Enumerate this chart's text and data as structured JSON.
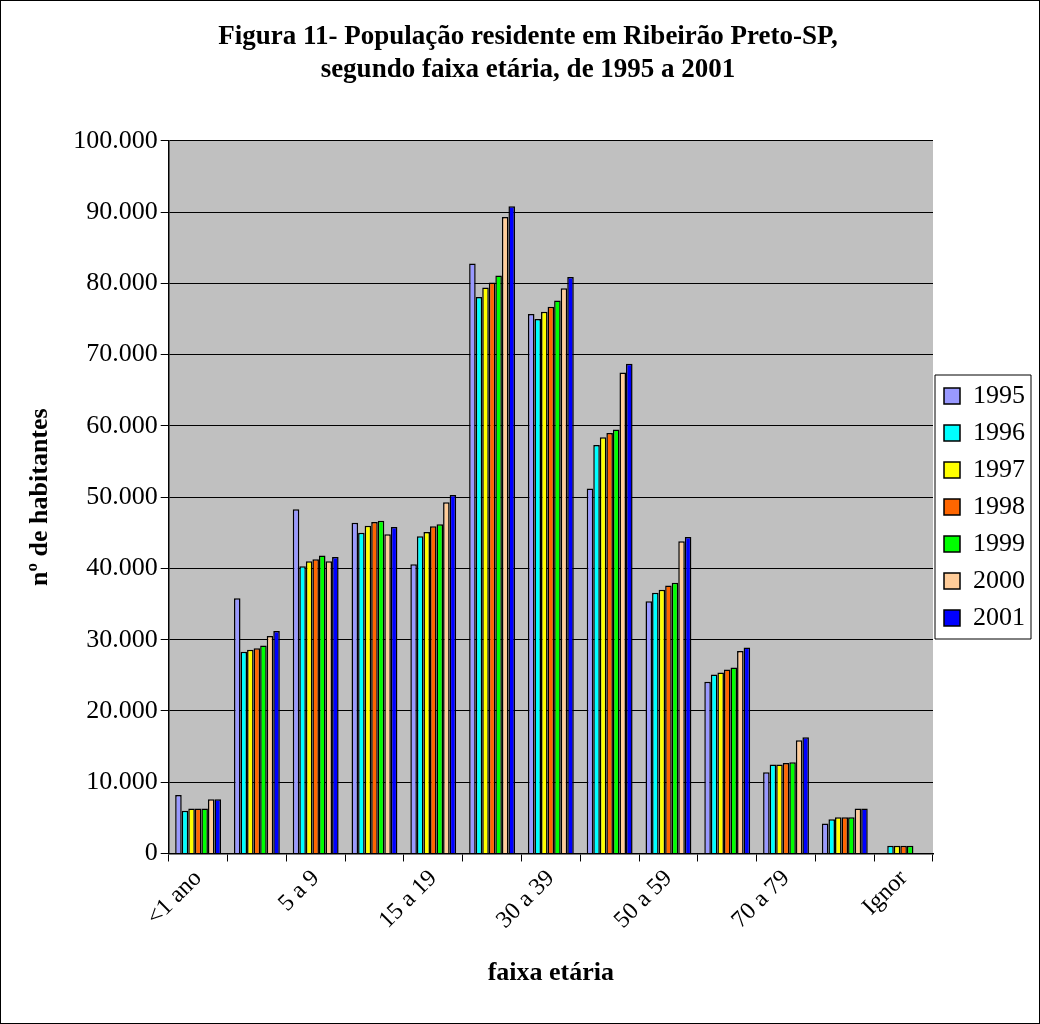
{
  "chart_data": {
    "type": "bar",
    "title": "Figura 11- População residente em Ribeirão Preto-SP, segundo faixa etária, de 1995 a 2001",
    "xlabel": "faixa etária",
    "ylabel": "nº de habitantes",
    "categories": [
      "<1 ano",
      null,
      "5 a 9",
      null,
      "15 a 19",
      null,
      "30 a 39",
      null,
      "50 a 59",
      null,
      "70 a 79",
      null,
      "Ignor"
    ],
    "series": [
      {
        "name": "1995",
        "color": "#9999ff",
        "values": [
          8200,
          35800,
          48300,
          46400,
          40600,
          82800,
          75700,
          51200,
          35400,
          24100,
          11400,
          4200,
          null
        ]
      },
      {
        "name": "1996",
        "color": "#00ffff",
        "values": [
          6000,
          28300,
          40300,
          45000,
          44500,
          78100,
          75000,
          57300,
          36600,
          25100,
          12500,
          4800,
          1100
        ]
      },
      {
        "name": "1997",
        "color": "#ffff00",
        "values": [
          6300,
          28600,
          41000,
          46000,
          45100,
          79400,
          76000,
          58400,
          37000,
          25400,
          12500,
          5100,
          1100
        ]
      },
      {
        "name": "1998",
        "color": "#ff6600",
        "values": [
          6300,
          28800,
          41300,
          46500,
          45900,
          80100,
          76700,
          59000,
          37600,
          25800,
          12700,
          5100,
          1100
        ]
      },
      {
        "name": "1999",
        "color": "#00ff00",
        "values": [
          6300,
          29200,
          41800,
          46700,
          46200,
          81100,
          77600,
          59500,
          38000,
          26100,
          12800,
          5100,
          1100
        ]
      },
      {
        "name": "2000",
        "color": "#ffcc99",
        "values": [
          7600,
          30500,
          41000,
          44800,
          49300,
          89300,
          79300,
          67500,
          43800,
          28400,
          15900,
          6300,
          null
        ]
      },
      {
        "name": "2001",
        "color": "#0000ff",
        "values": [
          7600,
          31200,
          41600,
          45800,
          50300,
          90800,
          80900,
          68700,
          44400,
          28900,
          16300,
          6300,
          null
        ]
      }
    ],
    "ylim": [
      0,
      100000
    ],
    "yticks": [
      0,
      {
        "value": 10000,
        "label": "10.000"
      },
      {
        "value": 20000,
        "label": "20.000"
      },
      {
        "value": 30000,
        "label": "30.000"
      },
      {
        "value": 40000,
        "label": "40.000"
      },
      {
        "value": 50000,
        "label": "50.000"
      },
      {
        "value": 60000,
        "label": "60.000"
      },
      {
        "value": 70000,
        "label": "70.000"
      },
      {
        "value": 80000,
        "label": "80.000"
      },
      {
        "value": 90000,
        "label": "90.000"
      },
      {
        "value": 100000,
        "label": "100.000"
      }
    ],
    "grid": "y",
    "legend": "right"
  }
}
